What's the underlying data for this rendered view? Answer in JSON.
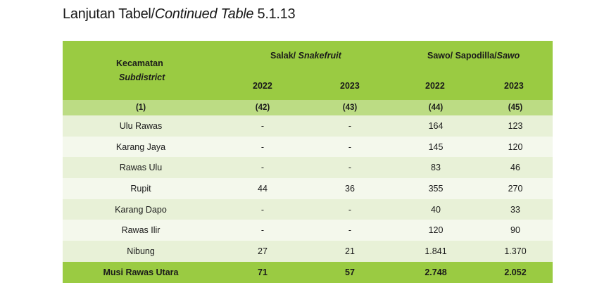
{
  "title": {
    "prefix": "Lanjutan Tabel/",
    "italic": "Continued Table",
    "suffix": " 5.1.13"
  },
  "header": {
    "kecamatan": "Kecamatan",
    "subdistrict": "Subdistrict",
    "salak": "Salak/ ",
    "salak_en": "Snakefruit",
    "sawo": "Sawo/ Sapodilla/",
    "sawo_en": "Sawo",
    "years": [
      "2022",
      "2023",
      "2022",
      "2023"
    ]
  },
  "column_numbers": [
    "(1)",
    "(42)",
    "(43)",
    "(44)",
    "(45)"
  ],
  "rows": [
    [
      "Ulu Rawas",
      "-",
      "-",
      "164",
      "123"
    ],
    [
      "Karang Jaya",
      "-",
      "-",
      "145",
      "120"
    ],
    [
      "Rawas Ulu",
      "-",
      "-",
      "83",
      "46"
    ],
    [
      "Rupit",
      "44",
      "36",
      "355",
      "270"
    ],
    [
      "Karang Dapo",
      "-",
      "-",
      "40",
      "33"
    ],
    [
      "Rawas Ilir",
      "-",
      "-",
      "120",
      "90"
    ],
    [
      "Nibung",
      "27",
      "21",
      "1.841",
      "1.370"
    ]
  ],
  "total": [
    "Musi Rawas Utara",
    "71",
    "57",
    "2.748",
    "2.052"
  ],
  "colors": {
    "header_green": "#9acb42",
    "number_row_green": "#bcdc84",
    "row_light": "#e8f1d7",
    "row_lighter": "#f4f8ec"
  }
}
